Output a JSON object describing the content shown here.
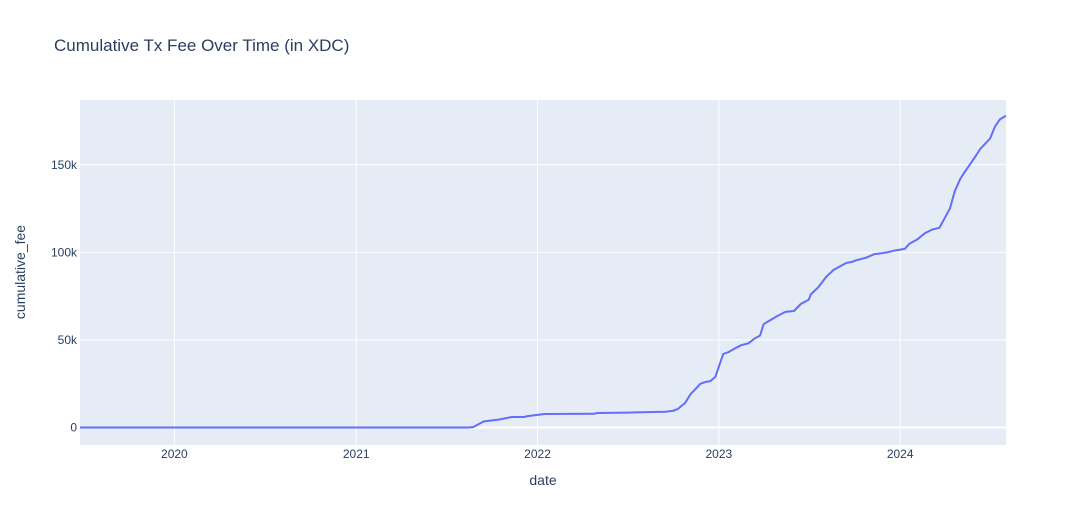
{
  "chart_data": {
    "type": "line",
    "title": "Cumulative Tx Fee Over Time (in XDC)",
    "xlabel": "date",
    "ylabel": "cumulative_fee",
    "xlim": [
      "2019-06-25",
      "2024-08-01"
    ],
    "ylim": [
      -10000,
      187000
    ],
    "x_ticks": [
      {
        "date": "2020-01-01",
        "label": "2020"
      },
      {
        "date": "2021-01-01",
        "label": "2021"
      },
      {
        "date": "2022-01-01",
        "label": "2022"
      },
      {
        "date": "2023-01-01",
        "label": "2023"
      },
      {
        "date": "2024-01-01",
        "label": "2024"
      }
    ],
    "y_ticks": [
      {
        "value": 0,
        "label": "0"
      },
      {
        "value": 50000,
        "label": "50k"
      },
      {
        "value": 100000,
        "label": "100k"
      },
      {
        "value": 150000,
        "label": "150k"
      }
    ],
    "grid": true,
    "colors": {
      "line": "#636efa",
      "plot_bg": "#e5ecf6",
      "grid": "#ffffff",
      "text": "#2a3f5f"
    },
    "series": [
      {
        "x": [
          "2019-06-25",
          "2021-08-15",
          "2021-08-25",
          "2021-09-05",
          "2021-09-15",
          "2021-10-15",
          "2021-11-10",
          "2021-12-05",
          "2021-12-12",
          "2022-01-15",
          "2022-04-25",
          "2022-05-01",
          "2022-07-01",
          "2022-09-15",
          "2022-09-30",
          "2022-10-10",
          "2022-10-25",
          "2022-11-05",
          "2022-11-15",
          "2022-11-25",
          "2022-12-05",
          "2022-12-15",
          "2022-12-25",
          "2023-01-05",
          "2023-01-10",
          "2023-01-20",
          "2023-02-01",
          "2023-02-15",
          "2023-03-01",
          "2023-03-15",
          "2023-03-25",
          "2023-04-01",
          "2023-04-10",
          "2023-05-01",
          "2023-05-15",
          "2023-06-01",
          "2023-06-15",
          "2023-07-01",
          "2023-07-05",
          "2023-07-20",
          "2023-08-05",
          "2023-08-20",
          "2023-09-05",
          "2023-09-15",
          "2023-09-25",
          "2023-10-05",
          "2023-10-25",
          "2023-11-10",
          "2023-11-25",
          "2023-12-05",
          "2023-12-20",
          "2024-01-10",
          "2024-01-20",
          "2024-02-05",
          "2024-02-20",
          "2024-03-05",
          "2024-03-20",
          "2024-04-10",
          "2024-04-20",
          "2024-05-01",
          "2024-05-10",
          "2024-05-20",
          "2024-06-01",
          "2024-06-10",
          "2024-06-20",
          "2024-06-30",
          "2024-07-10",
          "2024-07-20",
          "2024-08-01"
        ],
        "y": [
          0,
          0,
          300,
          2000,
          3500,
          4500,
          6000,
          6000,
          6500,
          7700,
          7800,
          8300,
          8500,
          9000,
          9500,
          10500,
          14000,
          19000,
          22000,
          25000,
          26000,
          26500,
          29000,
          38000,
          42000,
          43000,
          45000,
          47000,
          48000,
          51000,
          52500,
          59000,
          60500,
          64000,
          66000,
          66500,
          70500,
          73000,
          76000,
          80000,
          86000,
          90000,
          92500,
          94000,
          94500,
          95500,
          97000,
          99000,
          99500,
          100000,
          101000,
          102000,
          105000,
          107500,
          111000,
          113000,
          114000,
          125000,
          135000,
          142000,
          146000,
          150000,
          155000,
          159000,
          162000,
          165000,
          172000,
          176000,
          178000
        ]
      }
    ]
  }
}
